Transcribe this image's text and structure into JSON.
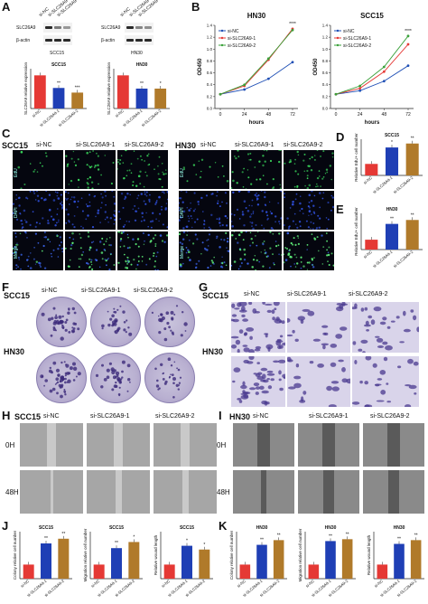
{
  "panelA": {
    "letter": "A",
    "blot_left": {
      "row1": "SLC26A9",
      "row2": "β-actin",
      "lanes": [
        "si-NC",
        "si-SLC26A9-1",
        "si-SLC26A9-2"
      ],
      "cell": "SCC15"
    },
    "blot_right": {
      "row1": "SLC26A9",
      "row2": "β-actin",
      "lanes": [
        "si-NC",
        "si-SLC26A9-1",
        "si-SLC26A9-2"
      ],
      "cell": "HN30"
    },
    "bar_left": {
      "title": "SCC15",
      "ylabel": "SLC26A9 relative expression",
      "categories": [
        "si-NC",
        "si-SLC26A9-1",
        "si-SLC26A9-2"
      ],
      "values": [
        1.0,
        0.62,
        0.48
      ],
      "sig": [
        "",
        "**",
        "***"
      ],
      "colors": [
        "#e53935",
        "#1f3fb5",
        "#b07a2a"
      ]
    },
    "bar_right": {
      "title": "HN30",
      "ylabel": "SLC26A9 relative expression",
      "categories": [
        "si-NC",
        "si-SLC26A9-1",
        "si-SLC26A9-2"
      ],
      "values": [
        1.0,
        0.6,
        0.6
      ],
      "sig": [
        "",
        "**",
        "*"
      ],
      "colors": [
        "#e53935",
        "#1f3fb5",
        "#b07a2a"
      ]
    }
  },
  "panelB": {
    "letter": "B",
    "ylabel": "OD450",
    "xlabel": "hours",
    "legend": [
      "si-NC",
      "si-SLC26A9-1",
      "si-SLC26A9-2"
    ],
    "colors": [
      "#1f4fb5",
      "#e53935",
      "#3aa13a"
    ],
    "x": [
      0,
      24,
      48,
      72
    ],
    "xticks": [
      "0",
      "24",
      "48",
      "72"
    ],
    "yticks": [
      "0.0",
      "0.2",
      "0.4",
      "0.6",
      "0.8",
      "1.0",
      "1.2",
      "1.4"
    ],
    "charts": [
      {
        "title": "HN30",
        "sig": "****",
        "series": [
          [
            0.24,
            0.32,
            0.5,
            0.78
          ],
          [
            0.24,
            0.38,
            0.82,
            1.34
          ],
          [
            0.24,
            0.4,
            0.84,
            1.32
          ]
        ]
      },
      {
        "title": "SCC15",
        "sig": "****",
        "series": [
          [
            0.24,
            0.3,
            0.46,
            0.72
          ],
          [
            0.24,
            0.34,
            0.62,
            1.08
          ],
          [
            0.24,
            0.38,
            0.7,
            1.22
          ]
        ]
      }
    ]
  },
  "panelC": {
    "letter": "C",
    "left_cell": "SCC15",
    "right_cell": "HN30",
    "cols": [
      "si-NC",
      "si-SLC26A9-1",
      "si-SLC26A9-2"
    ],
    "rows": [
      "EdU",
      "DAPI",
      "Merge"
    ]
  },
  "panelD": {
    "letter": "D",
    "title": "SCC15",
    "ylabel": "Relative EdU+ cell number",
    "categories": [
      "si-NC",
      "si-SLC26A9-1",
      "si-SLC26A9-2"
    ],
    "values": [
      0.35,
      0.85,
      0.97
    ],
    "sig": [
      "",
      "*",
      "**"
    ],
    "colors": [
      "#e53935",
      "#1f3fb5",
      "#b07a2a"
    ]
  },
  "panelE": {
    "letter": "E",
    "title": "HN30",
    "ylabel": "Relative EdU+ cell number",
    "categories": [
      "si-NC",
      "si-SLC26A9-1",
      "si-SLC26A9-2"
    ],
    "values": [
      0.3,
      0.78,
      0.9
    ],
    "sig": [
      "",
      "**",
      "**"
    ],
    "colors": [
      "#e53935",
      "#1f3fb5",
      "#b07a2a"
    ]
  },
  "panelF": {
    "letter": "F",
    "rows": [
      "SCC15",
      "HN30"
    ],
    "cols": [
      "si-NC",
      "si-SLC26A9-1",
      "si-SLC26A9-2"
    ]
  },
  "panelG": {
    "letter": "G",
    "rows": [
      "SCC15",
      "HN30"
    ],
    "cols": [
      "si-NC",
      "si-SLC26A9-1",
      "si-SLC26A9-2"
    ]
  },
  "panelH": {
    "letter": "H",
    "cell": "SCC15",
    "cols": [
      "si-NC",
      "si-SLC26A9-1",
      "si-SLC26A9-2"
    ],
    "rows": [
      "0H",
      "48H"
    ]
  },
  "panelI": {
    "letter": "I",
    "cell": "HN30",
    "cols": [
      "si-NC",
      "si-SLC26A9-1",
      "si-SLC26A9-2"
    ],
    "rows": [
      "0H",
      "48H"
    ]
  },
  "panelJ": {
    "letter": "J",
    "charts": [
      {
        "title": "SCC15",
        "ylabel": "Colony relative cell number",
        "categories": [
          "si-NC",
          "si-SLC26A9-1",
          "si-SLC26A9-2"
        ],
        "values": [
          0.3,
          0.75,
          0.85
        ],
        "sig": [
          "",
          "**",
          "**"
        ]
      },
      {
        "title": "SCC15",
        "ylabel": "Migration relative cell number",
        "categories": [
          "si-NC",
          "si-SLC26A9-1",
          "si-SLC26A9-2"
        ],
        "values": [
          0.3,
          0.65,
          0.78
        ],
        "sig": [
          "",
          "**",
          "*"
        ]
      },
      {
        "title": "SCC15",
        "ylabel": "Relative wound length",
        "categories": [
          "si-NC",
          "si-SLC26A9-1",
          "si-SLC26A9-2"
        ],
        "values": [
          0.3,
          0.7,
          0.62
        ],
        "sig": [
          "",
          "*",
          "*"
        ]
      }
    ],
    "colors": [
      "#e53935",
      "#1f3fb5",
      "#b07a2a"
    ]
  },
  "panelK": {
    "letter": "K",
    "charts": [
      {
        "title": "HN30",
        "ylabel": "Colony relative cell number",
        "categories": [
          "si-NC",
          "si-SLC26A9-1",
          "si-SLC26A9-2"
        ],
        "values": [
          0.3,
          0.72,
          0.82
        ],
        "sig": [
          "",
          "**",
          "**"
        ]
      },
      {
        "title": "HN30",
        "ylabel": "Migration relative cell number",
        "categories": [
          "si-NC",
          "si-SLC26A9-1",
          "si-SLC26A9-2"
        ],
        "values": [
          0.3,
          0.8,
          0.84
        ],
        "sig": [
          "",
          "**",
          "**"
        ]
      },
      {
        "title": "HN30",
        "ylabel": "Relative wound length",
        "categories": [
          "si-NC",
          "si-SLC26A9-1",
          "si-SLC26A9-2"
        ],
        "values": [
          0.3,
          0.74,
          0.82
        ],
        "sig": [
          "",
          "**",
          "**"
        ]
      }
    ],
    "colors": [
      "#e53935",
      "#1f3fb5",
      "#b07a2a"
    ]
  }
}
